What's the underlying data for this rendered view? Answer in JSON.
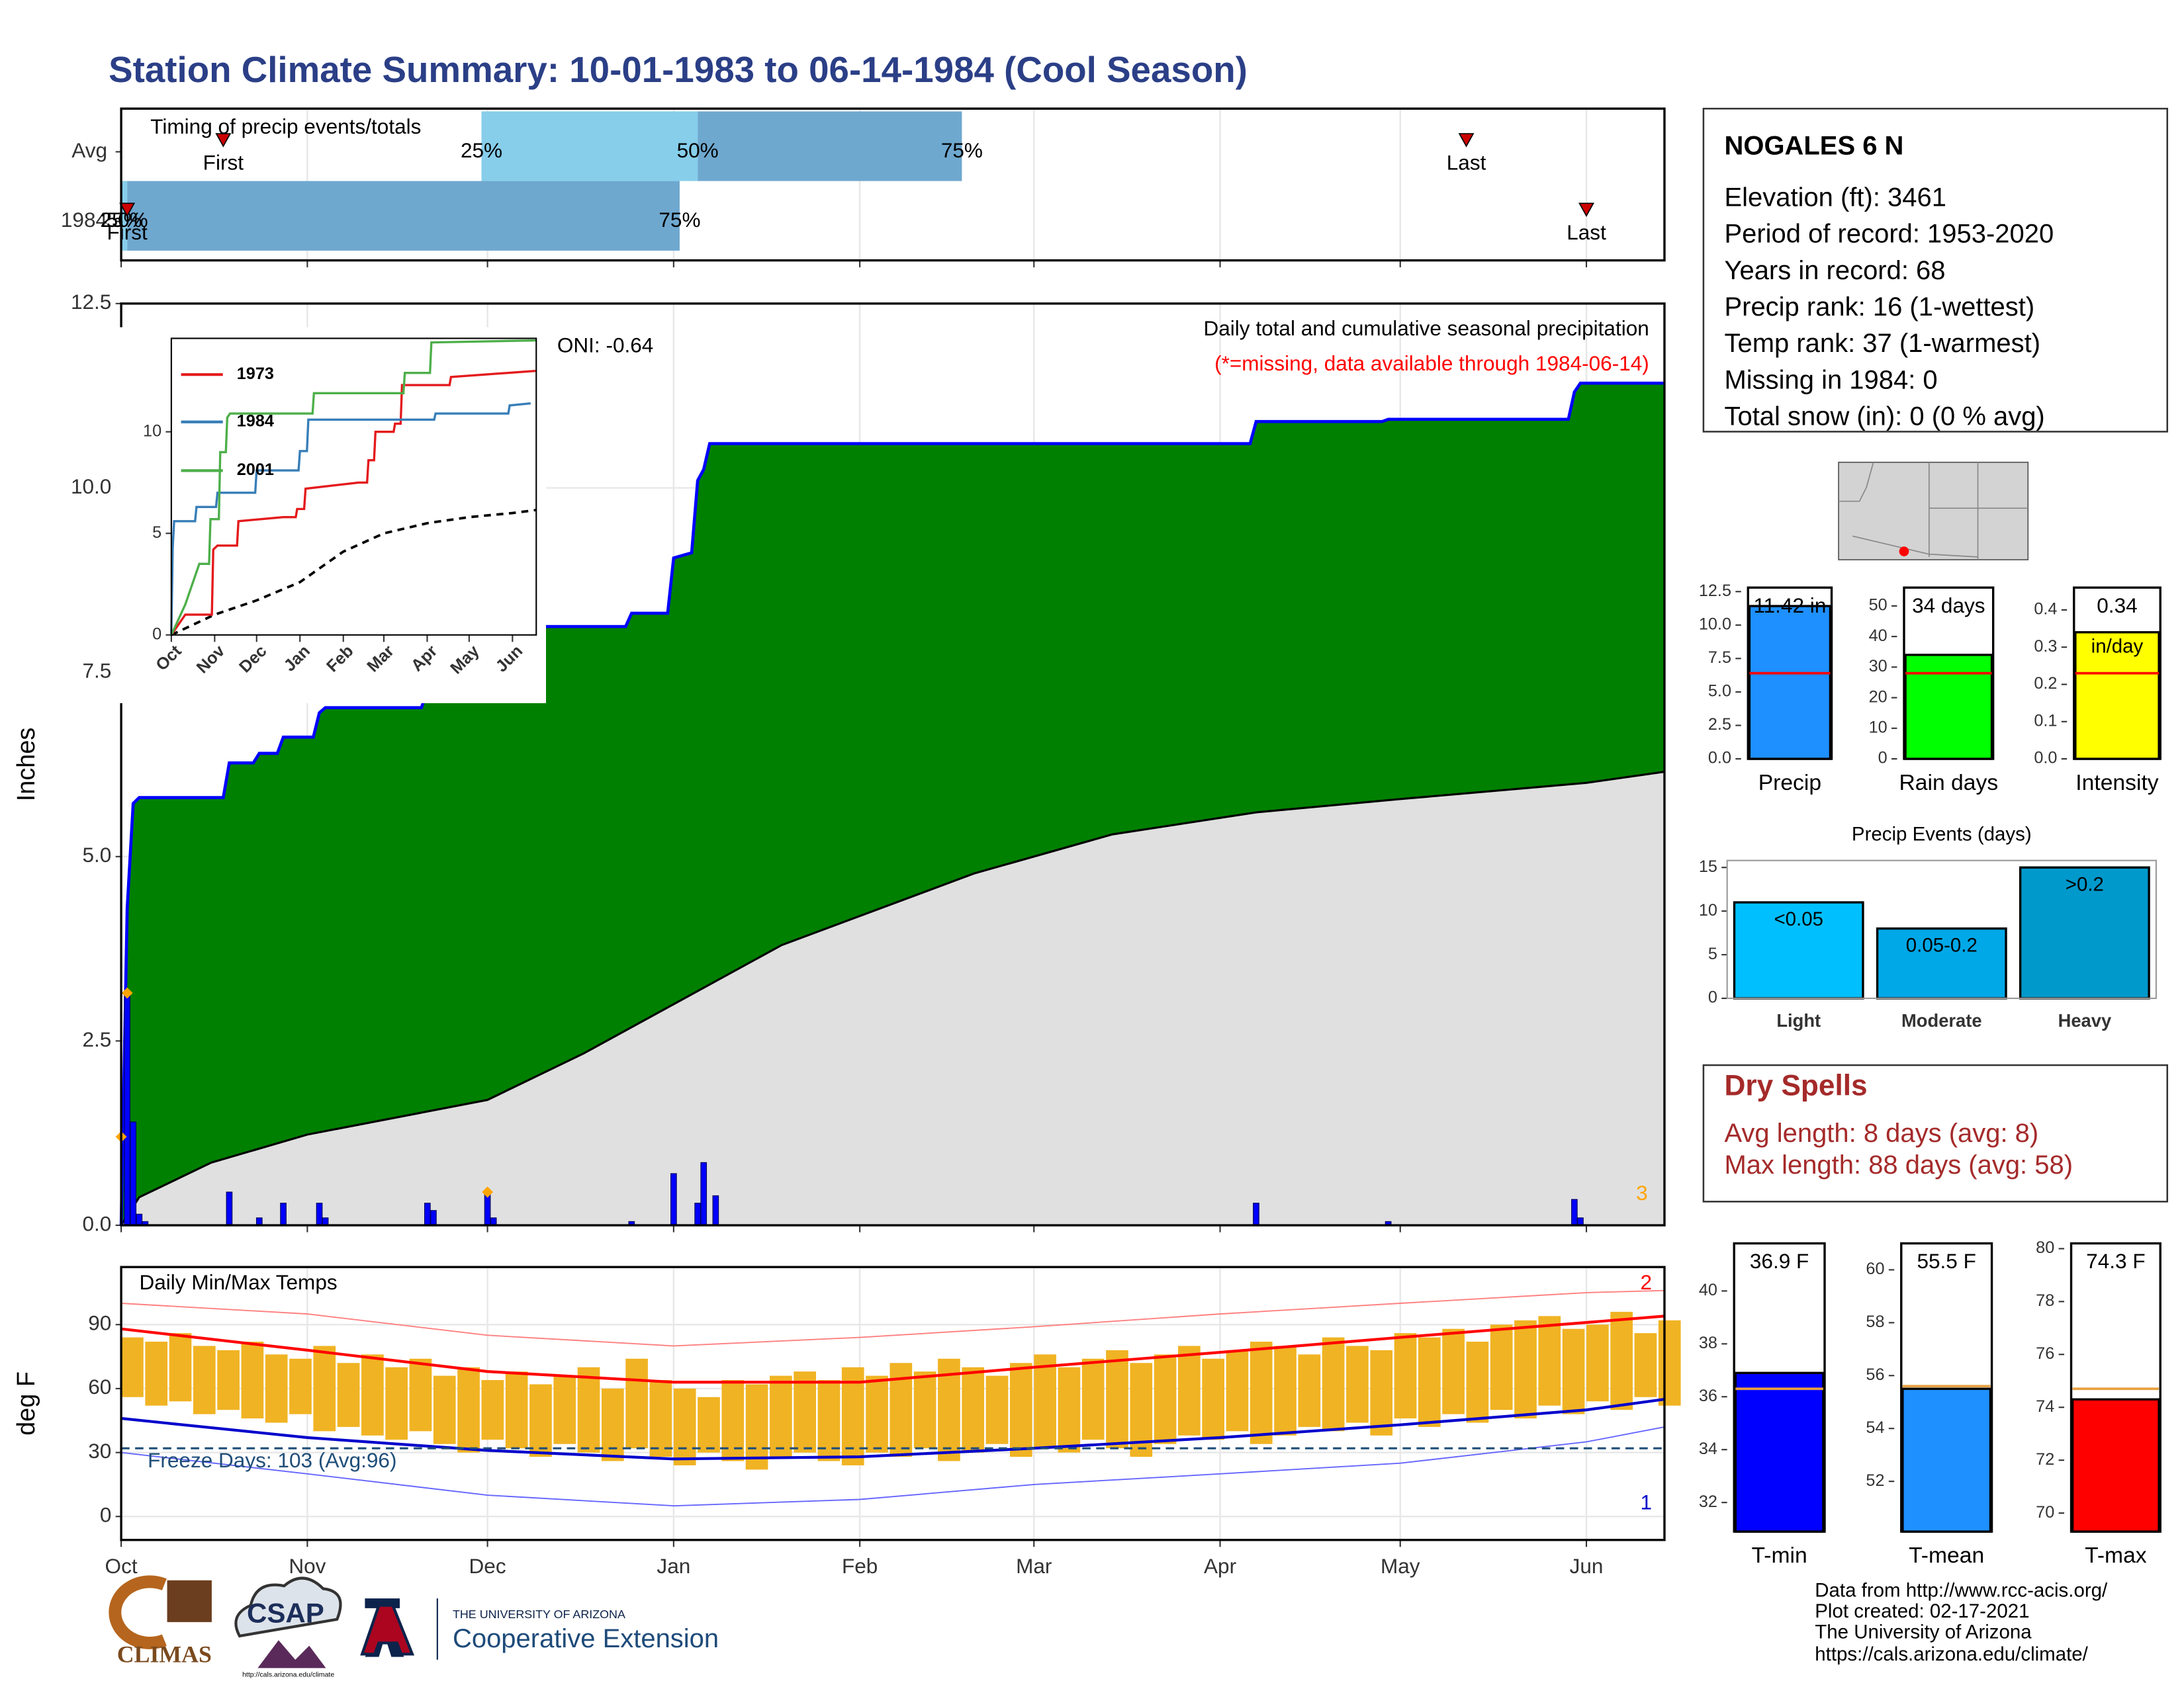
{
  "title": "Station Climate Summary: 10-01-1983 to 06-14-1984 (Cool Season)",
  "station": {
    "name": "NOGALES 6 N",
    "lines": [
      "Elevation (ft): 3461",
      "Period of record: 1953-2020",
      "Years in record: 68",
      "Precip rank: 16 (1-wettest)",
      "Temp rank: 37 (1-warmest)",
      "Missing in 1984: 0",
      "Total snow (in): 0 (0 % avg)"
    ]
  },
  "dry_spells": {
    "title": "Dry Spells",
    "lines": [
      "Avg length: 8 days (avg: 8)",
      "Max length: 88 days (avg: 58)"
    ]
  },
  "footer": [
    "Data from http://www.rcc-acis.org/",
    "Plot created: 02-17-2021",
    "The University of Arizona",
    "https://cals.arizona.edu/climate/"
  ],
  "logos": {
    "climas": "CLIMAS",
    "csap": "CSAP",
    "csap_url": "http://cals.arizona.edu/climate",
    "ua_line": "THE UNIVERSITY OF ARIZONA",
    "ua_name": "Cooperative Extension"
  },
  "chart_data": [
    {
      "type": "timing",
      "title": "Timing of precip events/totals",
      "xlim": [
        0,
        257
      ],
      "xticks": [
        0,
        31,
        61,
        92,
        123,
        152,
        183,
        213,
        244
      ],
      "quantile_labels": [
        "25%",
        "50%",
        "75%"
      ],
      "first_label": "First",
      "last_label": "Last",
      "colors": [
        "#87ceeb",
        "#6fa8cf"
      ],
      "marker_color": "#cc0000",
      "rows": [
        {
          "name": "Avg",
          "first": 17,
          "q25": 60,
          "q50": 96,
          "q75": 140,
          "last": 224
        },
        {
          "name": "1984",
          "first": 1,
          "q25": 0,
          "q50": 1,
          "q75": 93,
          "last": 244
        }
      ]
    },
    {
      "type": "cumulative_precip",
      "title": "Daily total and cumulative seasonal precipitation",
      "subtitle": "(*=missing, data available through 1984-06-14)",
      "annotation": "ONI: -0.64",
      "corner_label": "3",
      "ylabel": "Inches",
      "xlim": [
        0,
        257
      ],
      "ylim": [
        0,
        12.5
      ],
      "xticks": [
        0,
        31,
        61,
        92,
        123,
        152,
        183,
        213,
        244
      ],
      "yticks": [
        {
          "value": 0,
          "label": "0.0"
        },
        2.5,
        {
          "value": 5,
          "label": "5.0"
        },
        7.5,
        {
          "value": 10,
          "label": "10.0"
        },
        12.5
      ],
      "grid": true,
      "cumulative": {
        "color": "#008000",
        "line_color": "#0000ff",
        "x": [
          0,
          1,
          2,
          3,
          17,
          18,
          22,
          23,
          26,
          27,
          32,
          33,
          34,
          50,
          51,
          52,
          60,
          61,
          84,
          85,
          91,
          92,
          95,
          96,
          97,
          98,
          188,
          189,
          210,
          211,
          241,
          242,
          243,
          257
        ],
        "values": [
          0,
          4.3,
          5.72,
          5.8,
          5.8,
          6.27,
          6.27,
          6.4,
          6.4,
          6.62,
          6.62,
          6.95,
          7.02,
          7.02,
          7.25,
          7.36,
          7.36,
          8.12,
          8.12,
          8.3,
          8.3,
          9.05,
          9.12,
          10.1,
          10.25,
          10.6,
          10.6,
          10.9,
          10.9,
          10.93,
          10.93,
          11.3,
          11.42,
          11.42
        ]
      },
      "average": {
        "color": "#e0e0e0",
        "line_color": "#000000",
        "x": [
          0,
          3,
          15,
          31,
          61,
          77,
          110,
          142,
          165,
          189,
          213,
          244,
          257
        ],
        "values": [
          0,
          0.38,
          0.85,
          1.23,
          1.7,
          2.33,
          3.8,
          4.77,
          5.3,
          5.6,
          5.78,
          6.0,
          6.15
        ]
      },
      "daily": {
        "color": "#0000ff",
        "x": [
          1,
          2,
          3,
          4,
          18,
          23,
          27,
          33,
          34,
          51,
          52,
          61,
          62,
          85,
          92,
          96,
          97,
          99,
          189,
          211,
          242,
          243
        ],
        "values": [
          3.15,
          1.4,
          0.15,
          0.05,
          0.45,
          0.1,
          0.3,
          0.3,
          0.1,
          0.3,
          0.2,
          0.45,
          0.1,
          0.05,
          0.7,
          0.3,
          0.85,
          0.4,
          0.3,
          0.05,
          0.35,
          0.1
        ]
      },
      "missing": {
        "color": "#ffa500",
        "x": [
          1,
          0,
          61
        ],
        "values": [
          3.15,
          1.2,
          0.45
        ]
      }
    },
    {
      "type": "line",
      "xlim": [
        0,
        261
      ],
      "ylim": [
        0,
        14.6
      ],
      "xticks": [
        {
          "value": 0,
          "label": "Oct"
        },
        {
          "value": 31,
          "label": "Nov"
        },
        {
          "value": 61,
          "label": "Dec"
        },
        {
          "value": 92,
          "label": "Jan"
        },
        {
          "value": 123,
          "label": "Feb"
        },
        {
          "value": 152,
          "label": "Mar"
        },
        {
          "value": 183,
          "label": "Apr"
        },
        {
          "value": 213,
          "label": "May"
        },
        {
          "value": 244,
          "label": "Jun"
        }
      ],
      "yticks": [
        0,
        5,
        10
      ],
      "series": [
        {
          "name": "1973",
          "color": "#e41a1c",
          "x": [
            0,
            10,
            29,
            30,
            33,
            47,
            48,
            80,
            89,
            90,
            95,
            96,
            134,
            135,
            140,
            141,
            145,
            146,
            159,
            160,
            164,
            165,
            199,
            200,
            261
          ],
          "values": [
            0,
            1,
            1,
            4.2,
            4.4,
            4.4,
            5.6,
            5.8,
            5.8,
            6.2,
            6.2,
            7.2,
            7.5,
            7.5,
            7.5,
            8.6,
            8.6,
            10.0,
            10.0,
            10.4,
            10.4,
            12.3,
            12.3,
            12.7,
            13.0
          ]
        },
        {
          "name": "1984",
          "color": "#377eb8",
          "x": [
            0,
            1,
            2,
            17,
            18,
            32,
            33,
            60,
            61,
            91,
            92,
            97,
            98,
            188,
            189,
            241,
            242,
            257
          ],
          "values": [
            0,
            4.3,
            5.6,
            5.6,
            6.3,
            6.3,
            7.0,
            7.0,
            8.1,
            8.1,
            9.05,
            9.05,
            10.6,
            10.6,
            10.9,
            10.9,
            11.3,
            11.4
          ]
        },
        {
          "name": "2001",
          "color": "#4daf4a",
          "x": [
            0,
            10,
            20,
            27,
            28,
            34,
            35,
            39,
            40,
            42,
            101,
            102,
            166,
            167,
            185,
            186,
            261
          ],
          "values": [
            0,
            1.5,
            3.5,
            3.5,
            5.7,
            5.7,
            9.0,
            9.0,
            10.7,
            10.9,
            10.9,
            11.9,
            11.9,
            12.9,
            12.9,
            14.4,
            14.5
          ]
        }
      ],
      "average": {
        "color": "#000000",
        "x": [
          0,
          31,
          61,
          92,
          123,
          152,
          183,
          213,
          244,
          261
        ],
        "values": [
          0,
          1,
          1.7,
          2.6,
          4.1,
          5,
          5.5,
          5.8,
          6.0,
          6.15
        ]
      }
    },
    {
      "type": "temperature",
      "title": "Daily Min/Max Temps",
      "annotation": "Freeze Days: 103 (Avg:96)",
      "max_label": "2",
      "min_label": "1",
      "ylabel": "deg F",
      "xlim": [
        0,
        257
      ],
      "ylim": [
        -11,
        117
      ],
      "xticks": [
        {
          "value": 0,
          "label": "Oct"
        },
        {
          "value": 31,
          "label": "Nov"
        },
        {
          "value": 61,
          "label": "Dec"
        },
        {
          "value": 92,
          "label": "Jan"
        },
        {
          "value": 123,
          "label": "Feb"
        },
        {
          "value": 152,
          "label": "Mar"
        },
        {
          "value": 183,
          "label": "Apr"
        },
        {
          "value": 213,
          "label": "May"
        },
        {
          "value": 244,
          "label": "Jun"
        }
      ],
      "yticks": [
        0,
        30,
        60,
        90
      ],
      "grid": true,
      "daily": {
        "color": "#f0b323",
        "x": [
          0,
          4,
          8,
          12,
          16,
          20,
          24,
          28,
          32,
          36,
          40,
          44,
          48,
          52,
          56,
          60,
          64,
          68,
          72,
          76,
          80,
          84,
          88,
          92,
          96,
          100,
          104,
          108,
          112,
          116,
          120,
          124,
          128,
          132,
          136,
          140,
          144,
          148,
          152,
          156,
          160,
          164,
          168,
          172,
          176,
          180,
          184,
          188,
          192,
          196,
          200,
          204,
          208,
          212,
          216,
          220,
          224,
          228,
          232,
          236,
          240,
          244,
          248,
          252,
          256
        ],
        "max": [
          84,
          82,
          86,
          80,
          78,
          82,
          76,
          74,
          80,
          72,
          76,
          70,
          74,
          66,
          70,
          64,
          68,
          62,
          66,
          70,
          60,
          74,
          64,
          60,
          56,
          64,
          62,
          66,
          68,
          64,
          70,
          66,
          72,
          68,
          74,
          70,
          66,
          72,
          76,
          70,
          74,
          78,
          72,
          76,
          80,
          74,
          78,
          82,
          80,
          76,
          84,
          80,
          78,
          86,
          84,
          88,
          82,
          90,
          92,
          94,
          88,
          90,
          96,
          86,
          92
        ],
        "min": [
          56,
          52,
          54,
          48,
          50,
          46,
          44,
          48,
          40,
          42,
          38,
          36,
          40,
          34,
          30,
          36,
          32,
          28,
          34,
          30,
          26,
          32,
          28,
          24,
          30,
          26,
          22,
          28,
          30,
          26,
          24,
          30,
          28,
          32,
          26,
          30,
          34,
          28,
          32,
          30,
          36,
          32,
          28,
          34,
          38,
          36,
          40,
          34,
          38,
          42,
          40,
          44,
          38,
          46,
          42,
          48,
          44,
          50,
          46,
          52,
          48,
          54,
          50,
          56,
          52
        ]
      },
      "avg_max": {
        "color": "#ff0000",
        "x": [
          0,
          31,
          61,
          92,
          123,
          152,
          183,
          213,
          244,
          257
        ],
        "values": [
          88,
          78,
          68,
          63,
          63,
          70,
          77,
          84,
          91,
          94
        ]
      },
      "avg_min": {
        "color": "#0000cc",
        "x": [
          0,
          31,
          61,
          92,
          123,
          152,
          183,
          213,
          244,
          257
        ],
        "values": [
          46,
          37,
          31,
          27,
          28,
          32,
          37,
          43,
          50,
          55
        ]
      },
      "record_max": {
        "color": "#ff8080",
        "x": [
          0,
          31,
          61,
          92,
          123,
          152,
          183,
          213,
          244,
          257
        ],
        "values": [
          100,
          95,
          85,
          80,
          84,
          89,
          95,
          100,
          105,
          106
        ]
      },
      "record_min": {
        "color": "#6666ff",
        "x": [
          0,
          31,
          61,
          92,
          123,
          152,
          183,
          213,
          244,
          257
        ],
        "values": [
          30,
          20,
          10,
          5,
          8,
          15,
          20,
          25,
          35,
          42
        ]
      },
      "freeze": {
        "value": 32,
        "color": "#1f4e79"
      }
    },
    {
      "type": "summary_bar",
      "categories": [
        "Precip"
      ],
      "values": [
        11.42
      ],
      "value_labels": [
        "11.42 in"
      ],
      "average": 6.4,
      "color": "#1e90ff",
      "avg_color": "#ff0000",
      "ylim": [
        0,
        12.8
      ],
      "yticks": [
        {
          "value": 0,
          "label": "0.0"
        },
        2.5,
        {
          "value": 5,
          "label": "5.0"
        },
        7.5,
        {
          "value": 10,
          "label": "10.0"
        },
        12.5
      ]
    },
    {
      "type": "summary_bar",
      "categories": [
        "Rain days"
      ],
      "values": [
        34
      ],
      "value_labels": [
        "34 days"
      ],
      "average": 28,
      "color": "#00ff00",
      "avg_color": "#ff0000",
      "ylim": [
        0,
        56
      ],
      "yticks": [
        0,
        10,
        20,
        30,
        40,
        50
      ]
    },
    {
      "type": "summary_bar",
      "categories": [
        "Intensity"
      ],
      "values": [
        0.34
      ],
      "value_labels": [
        "0.34"
      ],
      "unit_label": "in/day",
      "average": 0.23,
      "color": "#ffff00",
      "avg_color": "#ff0000",
      "ylim": [
        0,
        0.46
      ],
      "yticks": [
        {
          "value": 0,
          "label": "0.0"
        },
        0.1,
        0.2,
        0.3,
        0.4
      ]
    },
    {
      "type": "bar",
      "title": "Precip Events (days)",
      "categories": [
        "Light",
        "Moderate",
        "Heavy"
      ],
      "values": [
        11,
        8,
        15
      ],
      "class_labels": [
        "<0.05",
        "0.05-0.2",
        ">0.2"
      ],
      "colors": [
        "#00bfff",
        "#00a8e8",
        "#0099cc"
      ],
      "ylim": [
        0,
        15.8
      ],
      "yticks": [
        0,
        5,
        10,
        15
      ]
    },
    {
      "type": "summary_bar",
      "categories": [
        "T-min"
      ],
      "values": [
        36.9
      ],
      "value_labels": [
        "36.9 F"
      ],
      "average": 36.3,
      "color": "#0000ff",
      "avg_color": "#e8a040",
      "ylim": [
        30.9,
        41.8
      ],
      "yticks": [
        32,
        34,
        36,
        38,
        40
      ]
    },
    {
      "type": "summary_bar",
      "categories": [
        "T-mean"
      ],
      "values": [
        55.5
      ],
      "value_labels": [
        "55.5 F"
      ],
      "average": 55.6,
      "color": "#1e90ff",
      "avg_color": "#e8a040",
      "ylim": [
        50.1,
        61
      ],
      "yticks": [
        52,
        54,
        56,
        58,
        60
      ]
    },
    {
      "type": "summary_bar",
      "categories": [
        "T-max"
      ],
      "values": [
        74.3
      ],
      "value_labels": [
        "74.3 F"
      ],
      "average": 74.7,
      "color": "#ff0000",
      "avg_color": "#e8a040",
      "ylim": [
        69.3,
        80.2
      ],
      "yticks": [
        70,
        72,
        74,
        76,
        78,
        80
      ]
    }
  ]
}
